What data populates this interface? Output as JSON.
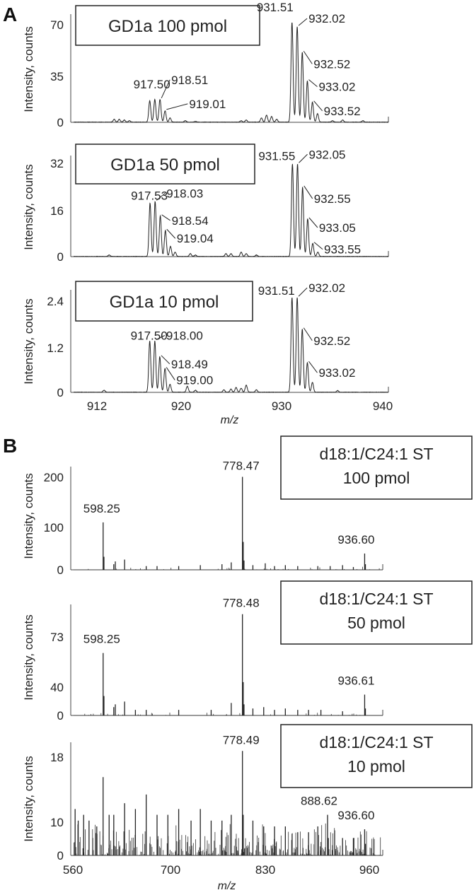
{
  "panel_labels": [
    "A",
    "B"
  ],
  "chart_data": [
    {
      "type": "line",
      "panel": "A",
      "legend_box": [
        "GD1a 100 pmol"
      ],
      "ylabel": "Intensity, counts",
      "yticks": [
        "0",
        "35",
        "70"
      ],
      "xlim": [
        910,
        941
      ],
      "ylim": [
        0,
        76
      ],
      "peaks": [
        [
          917.5,
          15
        ],
        [
          918.0,
          16
        ],
        [
          918.51,
          16
        ],
        [
          919.01,
          8
        ],
        [
          919.5,
          3
        ],
        [
          931.51,
          70
        ],
        [
          932.02,
          67
        ],
        [
          932.52,
          49
        ],
        [
          933.02,
          29
        ],
        [
          933.52,
          14
        ],
        [
          934.02,
          6
        ]
      ],
      "noise_peaks": [
        [
          914.0,
          2
        ],
        [
          914.5,
          2
        ],
        [
          915.0,
          1.5
        ],
        [
          915.5,
          1
        ],
        [
          921.0,
          1
        ],
        [
          922.0,
          0.5
        ],
        [
          926.5,
          1
        ],
        [
          927.0,
          1.5
        ],
        [
          928.5,
          3
        ],
        [
          929.0,
          5
        ],
        [
          929.5,
          4
        ],
        [
          930.0,
          2
        ],
        [
          935.5,
          1
        ],
        [
          936.5,
          1.5
        ],
        [
          938.5,
          1
        ]
      ],
      "annotations": [
        {
          "text": "917.50",
          "x": 917.5,
          "y": 15
        },
        {
          "text": "918.51",
          "x": 918.51,
          "y": 16
        },
        {
          "text": "919.01",
          "x": 919.01,
          "y": 8
        },
        {
          "text": "931.51",
          "x": 931.51,
          "y": 70
        },
        {
          "text": "932.02",
          "x": 932.02,
          "y": 67
        },
        {
          "text": "932.52",
          "x": 932.52,
          "y": 49
        },
        {
          "text": "933.02",
          "x": 933.02,
          "y": 29
        },
        {
          "text": "933.52",
          "x": 933.52,
          "y": 14
        }
      ]
    },
    {
      "type": "line",
      "panel": "A",
      "legend_box": [
        "GD1a 50 pmol"
      ],
      "ylabel": "Intensity, counts",
      "yticks": [
        "0",
        "16",
        "32"
      ],
      "xlim": [
        910,
        941
      ],
      "ylim": [
        0,
        35
      ],
      "peaks": [
        [
          917.53,
          18.5
        ],
        [
          918.03,
          19
        ],
        [
          918.54,
          14
        ],
        [
          919.04,
          9
        ],
        [
          919.54,
          3.5
        ],
        [
          920.0,
          1.5
        ],
        [
          931.55,
          32
        ],
        [
          932.05,
          32
        ],
        [
          932.55,
          24
        ],
        [
          933.05,
          13
        ],
        [
          933.55,
          4.5
        ],
        [
          934.05,
          1.5
        ]
      ],
      "noise_peaks": [
        [
          913.5,
          0.5
        ],
        [
          921.5,
          1
        ],
        [
          922.0,
          0.5
        ],
        [
          925.0,
          1
        ],
        [
          925.5,
          1
        ],
        [
          926.5,
          1.5
        ],
        [
          927.0,
          1
        ],
        [
          928.0,
          0.5
        ]
      ],
      "annotations": [
        {
          "text": "917.53",
          "x": 917.53,
          "y": 18.5
        },
        {
          "text": "918.03",
          "x": 918.03,
          "y": 19
        },
        {
          "text": "918.54",
          "x": 918.54,
          "y": 14
        },
        {
          "text": "919.04",
          "x": 919.04,
          "y": 9
        },
        {
          "text": "931.55",
          "x": 931.55,
          "y": 32
        },
        {
          "text": "932.05",
          "x": 932.05,
          "y": 32
        },
        {
          "text": "932.55",
          "x": 932.55,
          "y": 24
        },
        {
          "text": "933.05",
          "x": 933.05,
          "y": 13
        },
        {
          "text": "933.55",
          "x": 933.55,
          "y": 4.5
        }
      ]
    },
    {
      "type": "line",
      "panel": "A",
      "legend_box": [
        "GD1a 10 pmol"
      ],
      "ylabel": "Intensity, counts",
      "yticks": [
        "0",
        "1.2",
        "2.4"
      ],
      "xlabel": "m/z",
      "xticks": [
        "912",
        "920",
        "930",
        "940"
      ],
      "xlim": [
        910,
        941
      ],
      "ylim": [
        0,
        2.6
      ],
      "peaks": [
        [
          917.5,
          1.3
        ],
        [
          918.0,
          1.3
        ],
        [
          918.49,
          0.9
        ],
        [
          919.0,
          0.6
        ],
        [
          919.5,
          0.2
        ],
        [
          931.51,
          2.4
        ],
        [
          932.02,
          2.4
        ],
        [
          932.52,
          1.6
        ],
        [
          933.02,
          0.75
        ],
        [
          933.52,
          0.25
        ]
      ],
      "noise_peaks": [
        [
          913.0,
          0.05
        ],
        [
          921.2,
          0.15
        ],
        [
          922.0,
          0.05
        ],
        [
          924.8,
          0.06
        ],
        [
          925.5,
          0.08
        ],
        [
          926.0,
          0.12
        ],
        [
          926.5,
          0.1
        ],
        [
          927.0,
          0.18
        ],
        [
          928.0,
          0.06
        ],
        [
          936.0,
          0.04
        ]
      ],
      "annotations": [
        {
          "text": "917.50",
          "x": 917.5,
          "y": 1.3
        },
        {
          "text": "918.00",
          "x": 918.0,
          "y": 1.3
        },
        {
          "text": "918.49",
          "x": 918.49,
          "y": 0.9
        },
        {
          "text": "919.00",
          "x": 919.0,
          "y": 0.6
        },
        {
          "text": "931.51",
          "x": 931.51,
          "y": 2.4
        },
        {
          "text": "932.02",
          "x": 932.02,
          "y": 2.4
        },
        {
          "text": "932.52",
          "x": 932.52,
          "y": 1.6
        },
        {
          "text": "933.02",
          "x": 933.02,
          "y": 0.75
        }
      ]
    },
    {
      "type": "line",
      "panel": "B",
      "legend_box": [
        "d18:1/C24:1 ST",
        "100 pmol"
      ],
      "ylabel": "Intensity, counts",
      "yticks": [
        "0",
        "100",
        "200"
      ],
      "xlim": [
        560,
        960
      ],
      "ylim": [
        0,
        222
      ],
      "peaks": [
        [
          598.25,
          102
        ],
        [
          599.3,
          28
        ],
        [
          612.0,
          12
        ],
        [
          614.0,
          18
        ],
        [
          626.0,
          22
        ],
        [
          654.0,
          8
        ],
        [
          668.0,
          8
        ],
        [
          696.0,
          8
        ],
        [
          724.0,
          10
        ],
        [
          752.0,
          12
        ],
        [
          764.0,
          16
        ],
        [
          778.47,
          200
        ],
        [
          779.5,
          60
        ],
        [
          780.5,
          20
        ],
        [
          792.0,
          10
        ],
        [
          808.0,
          14
        ],
        [
          820.0,
          8
        ],
        [
          834.0,
          10
        ],
        [
          850.0,
          8
        ],
        [
          876.0,
          8
        ],
        [
          892.0,
          8
        ],
        [
          908.0,
          10
        ],
        [
          922.0,
          6
        ],
        [
          936.6,
          35
        ],
        [
          937.6,
          12
        ]
      ],
      "noise_density": 0.06,
      "noise_amp": 8,
      "annotations": [
        {
          "text": "598.25",
          "x": 598.25,
          "y": 102
        },
        {
          "text": "778.47",
          "x": 778.47,
          "y": 200
        },
        {
          "text": "936.60",
          "x": 936.6,
          "y": 35
        }
      ]
    },
    {
      "type": "line",
      "panel": "B",
      "legend_box": [
        "d18:1/C24:1 ST",
        "50 pmol"
      ],
      "ylabel": "Intensity, counts",
      "yticks": [
        "0",
        "40",
        "73"
      ],
      "xlim": [
        560,
        960
      ],
      "ylim": [
        0,
        80
      ],
      "peaks": [
        [
          598.25,
          45
        ],
        [
          599.3,
          14
        ],
        [
          612.0,
          6
        ],
        [
          614.0,
          8
        ],
        [
          626.0,
          10
        ],
        [
          640.0,
          4
        ],
        [
          654.0,
          4
        ],
        [
          696.0,
          4
        ],
        [
          738.0,
          4
        ],
        [
          764.0,
          9
        ],
        [
          778.48,
          73
        ],
        [
          779.5,
          24
        ],
        [
          780.5,
          8
        ],
        [
          792.0,
          5
        ],
        [
          806.0,
          6
        ],
        [
          820.0,
          4
        ],
        [
          834.0,
          5
        ],
        [
          850.0,
          4
        ],
        [
          864.0,
          4
        ],
        [
          880.0,
          4
        ],
        [
          908.0,
          3
        ],
        [
          936.61,
          15
        ],
        [
          937.6,
          5
        ]
      ],
      "noise_density": 0.06,
      "noise_amp": 2.5,
      "annotations": [
        {
          "text": "598.25",
          "x": 598.25,
          "y": 45
        },
        {
          "text": "778.48",
          "x": 778.48,
          "y": 73
        },
        {
          "text": "936.61",
          "x": 936.61,
          "y": 15
        }
      ]
    },
    {
      "type": "line",
      "panel": "B",
      "legend_box": [
        "d18:1/C24:1 ST",
        "10 pmol"
      ],
      "ylabel": "Intensity, counts",
      "yticks": [
        "0",
        "10",
        "18"
      ],
      "xlabel": "m/z",
      "xticks": [
        "560",
        "700",
        "830",
        "960"
      ],
      "xlim": [
        560,
        960
      ],
      "ylim": [
        0,
        19.5
      ],
      "peaks": [
        [
          562.0,
          8
        ],
        [
          566.0,
          6
        ],
        [
          573.0,
          7
        ],
        [
          580.0,
          6
        ],
        [
          590.0,
          5
        ],
        [
          598.2,
          13.5
        ],
        [
          606.0,
          7
        ],
        [
          612.0,
          7
        ],
        [
          626.0,
          9
        ],
        [
          640.0,
          8
        ],
        [
          654.0,
          10.5
        ],
        [
          668.0,
          7
        ],
        [
          682.0,
          7
        ],
        [
          696.0,
          8
        ],
        [
          712.0,
          6
        ],
        [
          724.0,
          8
        ],
        [
          738.0,
          6
        ],
        [
          752.0,
          6
        ],
        [
          764.0,
          7
        ],
        [
          778.49,
          18
        ],
        [
          779.5,
          7
        ],
        [
          792.0,
          6
        ],
        [
          806.0,
          5
        ],
        [
          820.0,
          5
        ],
        [
          834.0,
          5
        ],
        [
          850.0,
          4
        ],
        [
          864.0,
          4
        ],
        [
          876.0,
          5
        ],
        [
          888.62,
          7
        ],
        [
          889.6,
          3
        ],
        [
          908.0,
          3
        ],
        [
          922.0,
          3
        ],
        [
          936.6,
          4.5
        ],
        [
          937.6,
          2
        ]
      ],
      "noise_density": 0.45,
      "noise_amp": 6,
      "annotations": [
        {
          "text": "778.49",
          "x": 778.49,
          "y": 18
        },
        {
          "text": "888.62",
          "x": 888.62,
          "y": 7
        },
        {
          "text": "936.60",
          "x": 936.6,
          "y": 4.5
        }
      ]
    }
  ]
}
